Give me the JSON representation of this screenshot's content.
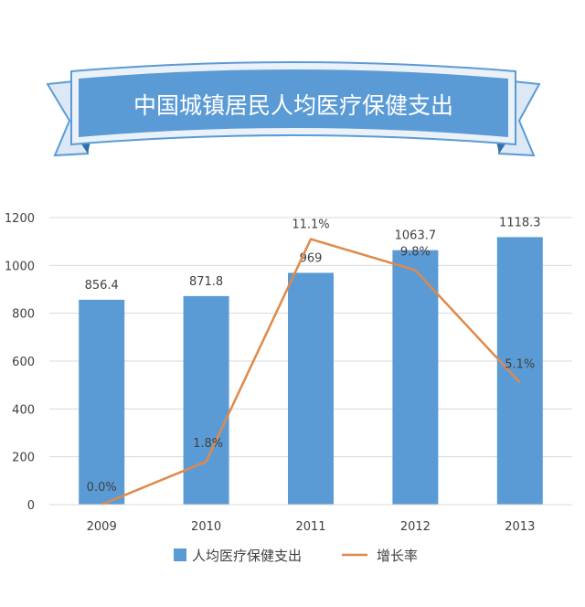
{
  "title": "中国城镇居民人均医疗保健支出",
  "colors": {
    "bar": "#5b9bd5",
    "line": "#e0894a",
    "banner": "#5b9bd5",
    "banner_dark": "#2f6fab",
    "banner_light": "#dce8f5",
    "grid": "#d9d9d9",
    "axis_text": "#404040"
  },
  "chart_data": {
    "type": "bar",
    "categories": [
      "2009",
      "2010",
      "2011",
      "2012",
      "2013"
    ],
    "ylim": [
      0,
      1200
    ],
    "yticks": [
      0,
      200,
      400,
      600,
      800,
      1000,
      1200
    ],
    "grid": true,
    "legend_position": "bottom",
    "series": [
      {
        "name": "人均医疗保健支出",
        "type": "bar",
        "values": [
          856.4,
          871.8,
          969,
          1063.7,
          1118.3
        ],
        "labels": [
          "856.4",
          "871.8",
          "969",
          "1063.7",
          "1118.3"
        ]
      },
      {
        "name": "增长率",
        "type": "line",
        "axis": "secondary-hidden",
        "values": [
          0.0,
          1.8,
          11.1,
          9.8,
          5.1
        ],
        "labels": [
          "0.0%",
          "1.8%",
          "11.1%",
          "9.8%",
          "5.1%"
        ],
        "secondary_range": [
          0,
          12
        ]
      }
    ]
  }
}
